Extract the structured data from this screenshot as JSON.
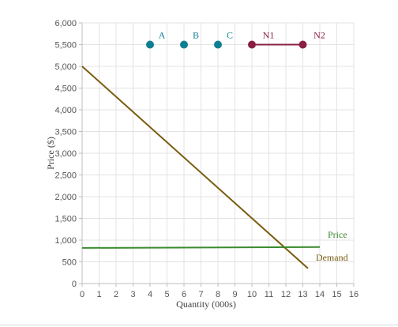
{
  "chart_data": {
    "type": "line",
    "xlabel": "Quantity (000s)",
    "ylabel": "Price ($)",
    "xlim": [
      0,
      16
    ],
    "ylim": [
      0,
      6000
    ],
    "x_ticks": [
      0,
      1,
      2,
      3,
      4,
      5,
      6,
      7,
      8,
      9,
      10,
      11,
      12,
      13,
      14,
      15,
      16
    ],
    "y_ticks": [
      0,
      500,
      1000,
      1500,
      2000,
      2500,
      3000,
      3500,
      4000,
      4500,
      5000,
      5500,
      6000
    ],
    "y_tick_labels": [
      "0",
      "500",
      "1,000",
      "1,500",
      "2,000",
      "2,500",
      "3,000",
      "3,500",
      "4,000",
      "4,500",
      "5,000",
      "5,500",
      "6,000"
    ],
    "grid": true,
    "series": [
      {
        "name": "Demand",
        "color": "#7a5c0f",
        "points": [
          [
            0,
            5000
          ],
          [
            13.3,
            350
          ]
        ]
      },
      {
        "name": "Price",
        "color": "#3a8a2e",
        "points": [
          [
            0,
            820
          ],
          [
            14,
            840
          ]
        ]
      }
    ],
    "points": [
      {
        "label": "A",
        "x": 4,
        "y": 5500,
        "color": "#0e7f92"
      },
      {
        "label": "B",
        "x": 6,
        "y": 5500,
        "color": "#0e7f92"
      },
      {
        "label": "C",
        "x": 8,
        "y": 5500,
        "color": "#0e7f92"
      }
    ],
    "segment": {
      "color": "#8a1f45",
      "start": {
        "label": "N1",
        "x": 10,
        "y": 5500
      },
      "end": {
        "label": "N2",
        "x": 13,
        "y": 5500
      }
    }
  }
}
